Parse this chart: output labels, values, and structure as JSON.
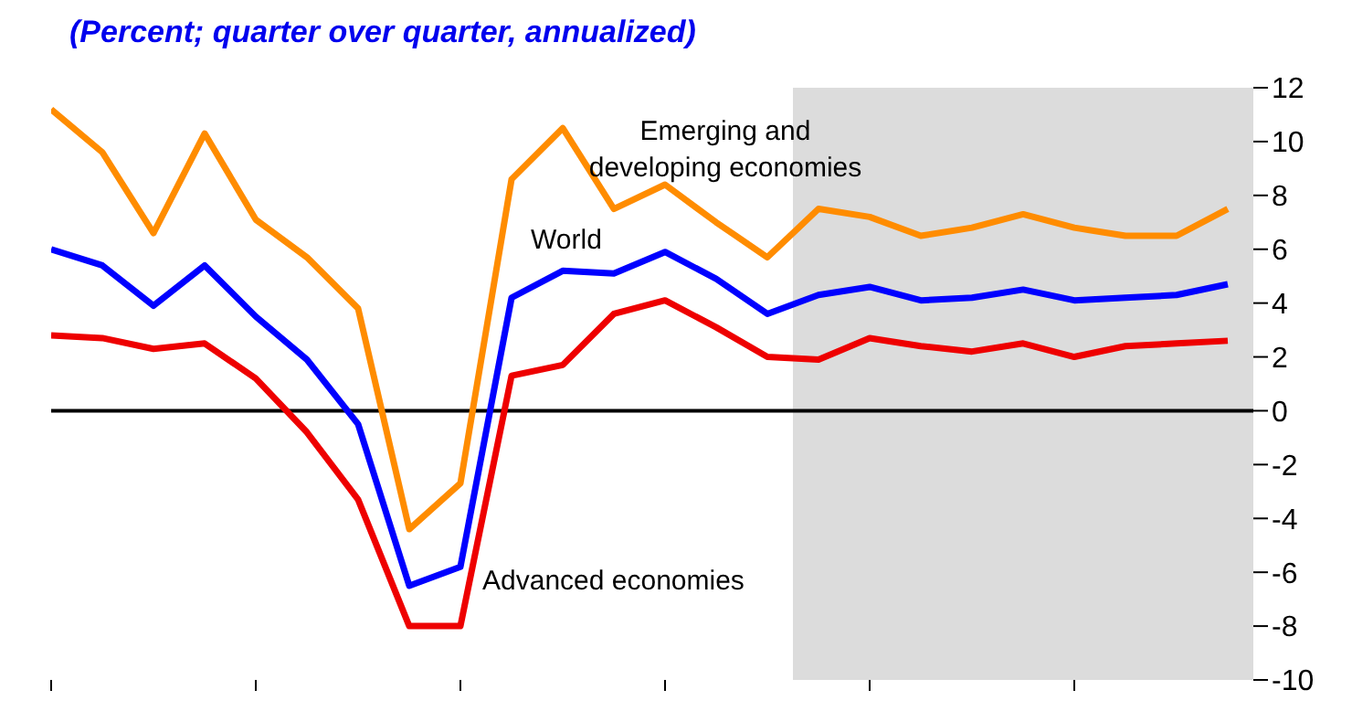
{
  "chart_data": {
    "type": "line",
    "title": "(Percent; quarter over quarter, annualized)",
    "categories": [
      null,
      null,
      null,
      null,
      null,
      null,
      null,
      null,
      null,
      null,
      null,
      null,
      null,
      null,
      null,
      null,
      null,
      null,
      null,
      null,
      null,
      null,
      null,
      null
    ],
    "series": [
      {
        "name": "Emerging and developing economies",
        "color": "#ff8c00",
        "values": [
          11.2,
          9.6,
          6.6,
          10.3,
          7.1,
          5.7,
          3.8,
          -4.4,
          -2.7,
          8.6,
          10.5,
          7.5,
          8.4,
          7.0,
          5.7,
          7.5,
          7.2,
          6.5,
          6.8,
          7.3,
          6.8,
          6.5,
          6.5,
          7.5
        ]
      },
      {
        "name": "World",
        "color": "#0000ff",
        "values": [
          6.0,
          5.4,
          3.9,
          5.4,
          3.5,
          1.9,
          -0.5,
          -6.5,
          -5.8,
          4.2,
          5.2,
          5.1,
          5.9,
          4.9,
          3.6,
          4.3,
          4.6,
          4.1,
          4.2,
          4.5,
          4.1,
          4.2,
          4.3,
          4.7
        ]
      },
      {
        "name": "Advanced economies",
        "color": "#ee0000",
        "values": [
          2.8,
          2.7,
          2.3,
          2.5,
          1.2,
          -0.8,
          -3.3,
          -8.0,
          -8.0,
          1.3,
          1.7,
          3.6,
          4.1,
          3.1,
          2.0,
          1.9,
          2.7,
          2.4,
          2.2,
          2.5,
          2.0,
          2.4,
          2.5,
          2.6
        ]
      }
    ],
    "ylim": [
      -10,
      12
    ],
    "yticks": [
      -10,
      -8,
      -6,
      -4,
      -2,
      0,
      2,
      4,
      6,
      8,
      10,
      12
    ],
    "ref_lines": [
      {
        "axis": "y",
        "value": 0,
        "color": "#000000"
      }
    ],
    "grid": false,
    "legend": false,
    "marker": "none",
    "line_style": "solid"
  }
}
